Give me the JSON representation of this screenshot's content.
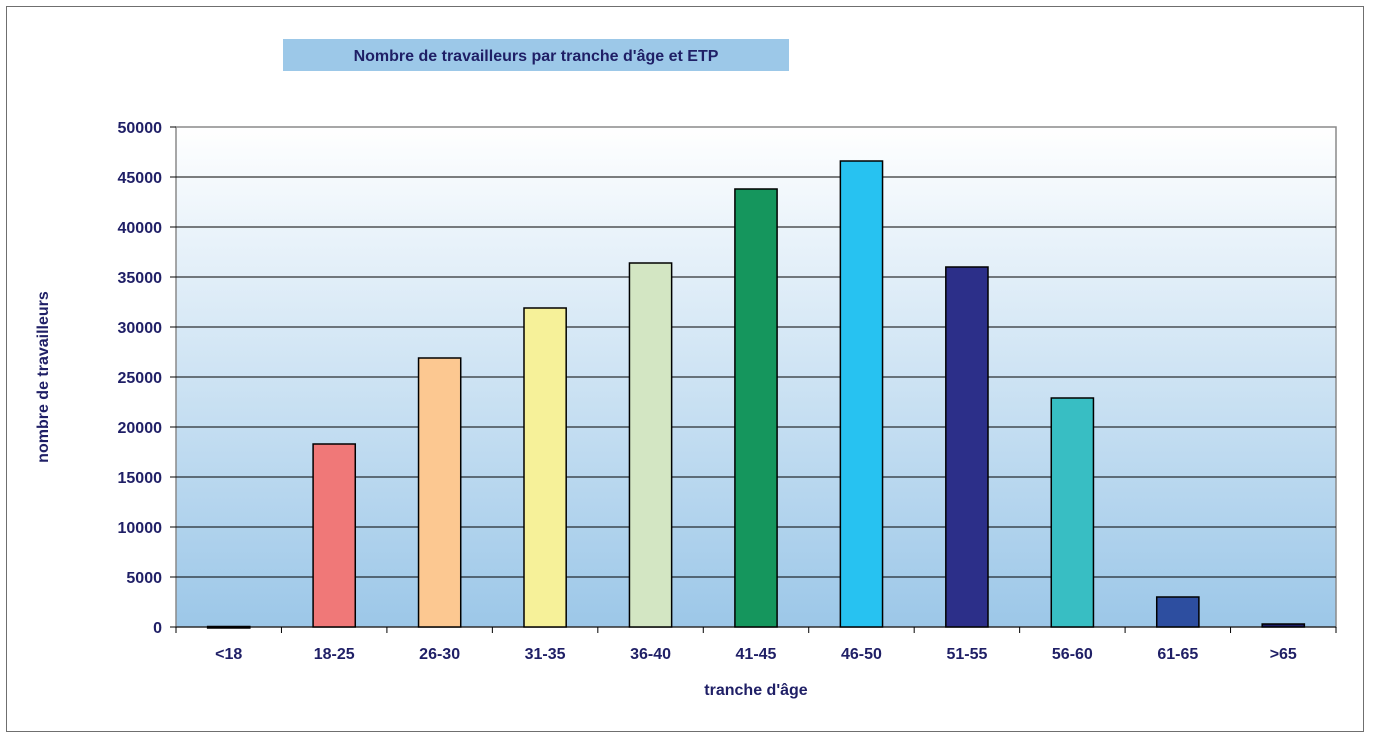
{
  "chart_data": {
    "type": "bar",
    "title": "Nombre de travailleurs par tranche d'âge et ETP",
    "xlabel": "tranche d'âge",
    "ylabel": "nombre de travailleurs",
    "categories": [
      "<18",
      "18-25",
      "26-30",
      "31-35",
      "36-40",
      "41-45",
      "46-50",
      "51-55",
      "56-60",
      "61-65",
      ">65"
    ],
    "values": [
      50,
      18300,
      26900,
      31900,
      36400,
      43800,
      46600,
      36000,
      22900,
      3000,
      300
    ],
    "ylim": [
      0,
      50000
    ],
    "yticks": [
      "0",
      "5000",
      "10000",
      "15000",
      "20000",
      "25000",
      "30000",
      "35000",
      "40000",
      "45000",
      "50000"
    ],
    "grid": true,
    "legend": "none",
    "bar_colors": [
      "#1c1c66",
      "#f07878",
      "#fcc891",
      "#f6f199",
      "#d3e6c3",
      "#15965d",
      "#27c2f1",
      "#2c2f89",
      "#38bec3",
      "#2d4ea0",
      "#1c1c66"
    ],
    "colors": {
      "title_box": "#9cc8e8",
      "text": "#1f1f66",
      "plot_top": "#ffffff",
      "plot_bottom": "#9cc7e8",
      "gridline": "#000000",
      "bar_outline": "#000000"
    }
  }
}
